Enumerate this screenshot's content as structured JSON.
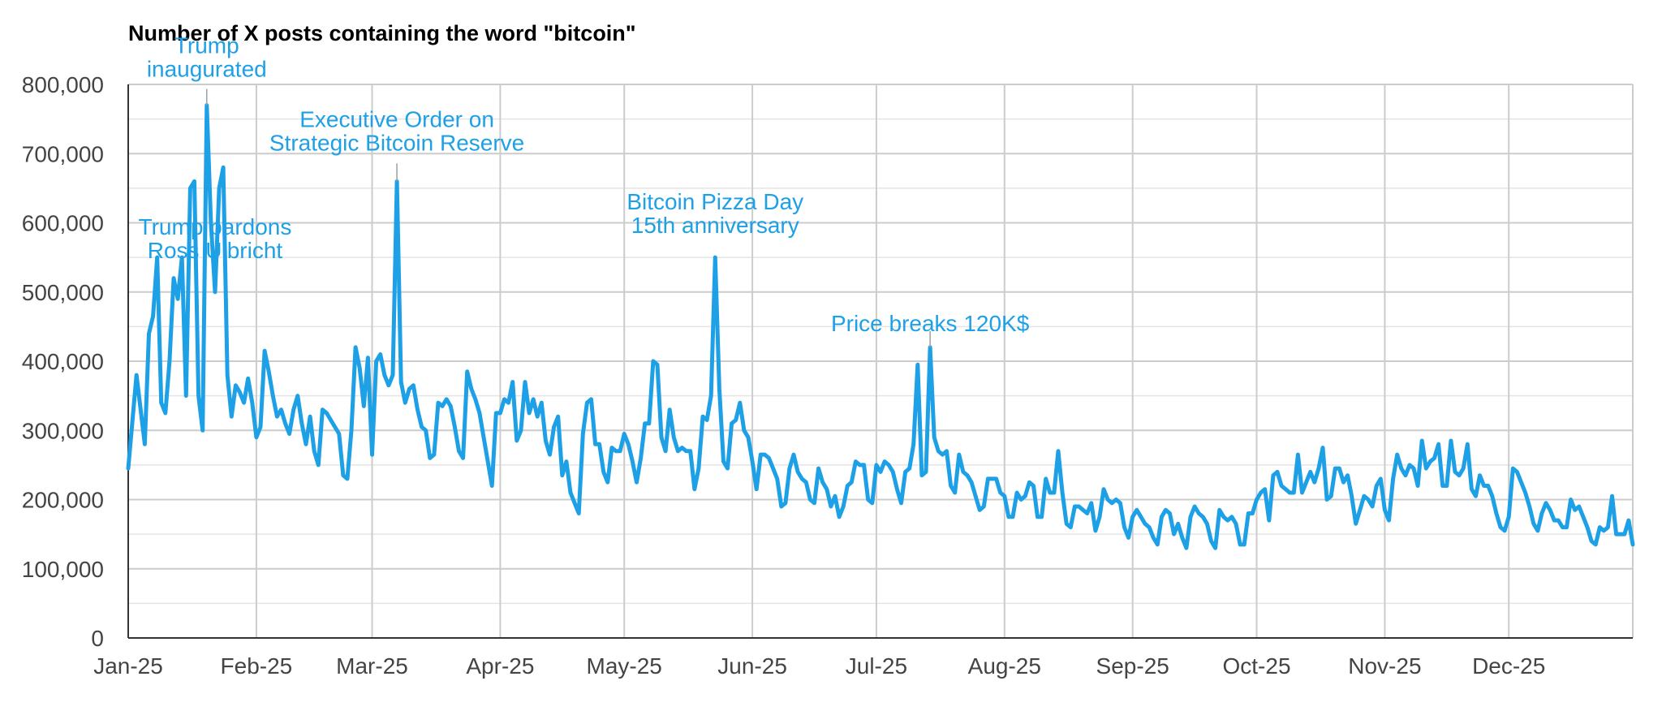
{
  "chart_data": {
    "type": "line",
    "title": "Number of X posts containing the word \"bitcoin\"",
    "xlabel": "",
    "ylabel": "",
    "ylim": [
      0,
      800000
    ],
    "yticks": [
      "800,000",
      "700,000",
      "600,000",
      "500,000",
      "400,000",
      "300,000",
      "200,000",
      "100,000",
      "0"
    ],
    "ytick_values": [
      800000,
      700000,
      600000,
      500000,
      400000,
      300000,
      200000,
      100000,
      0
    ],
    "xticks": [
      "Jan-25",
      "Feb-25",
      "Mar-25",
      "Apr-25",
      "May-25",
      "Jun-25",
      "Jul-25",
      "Aug-25",
      "Sep-25",
      "Oct-25",
      "Nov-25",
      "Dec-25"
    ],
    "xtick_days": [
      0,
      31,
      59,
      90,
      120,
      151,
      181,
      212,
      243,
      273,
      304,
      334
    ],
    "x_domain_days": [
      0,
      364
    ],
    "grid": true,
    "line_color": "#1ea0e6",
    "points": [
      [
        0,
        245000
      ],
      [
        2,
        380000
      ],
      [
        4,
        280000
      ],
      [
        5,
        440000
      ],
      [
        6,
        465000
      ],
      [
        7,
        550000
      ],
      [
        8,
        340000
      ],
      [
        9,
        325000
      ],
      [
        10,
        400000
      ],
      [
        11,
        520000
      ],
      [
        12,
        490000
      ],
      [
        13,
        550000
      ],
      [
        14,
        350000
      ],
      [
        15,
        650000
      ],
      [
        16,
        660000
      ],
      [
        17,
        350000
      ],
      [
        18,
        300000
      ],
      [
        19,
        770000
      ],
      [
        20,
        600000
      ],
      [
        21,
        500000
      ],
      [
        22,
        650000
      ],
      [
        23,
        680000
      ],
      [
        24,
        380000
      ],
      [
        25,
        320000
      ],
      [
        26,
        365000
      ],
      [
        27,
        355000
      ],
      [
        28,
        340000
      ],
      [
        29,
        375000
      ],
      [
        30,
        340000
      ],
      [
        31,
        290000
      ],
      [
        32,
        305000
      ],
      [
        33,
        415000
      ],
      [
        34,
        385000
      ],
      [
        35,
        350000
      ],
      [
        36,
        320000
      ],
      [
        37,
        330000
      ],
      [
        38,
        310000
      ],
      [
        39,
        295000
      ],
      [
        40,
        330000
      ],
      [
        41,
        350000
      ],
      [
        42,
        310000
      ],
      [
        43,
        280000
      ],
      [
        44,
        320000
      ],
      [
        45,
        270000
      ],
      [
        46,
        250000
      ],
      [
        47,
        330000
      ],
      [
        48,
        325000
      ],
      [
        49,
        315000
      ],
      [
        50,
        305000
      ],
      [
        51,
        295000
      ],
      [
        52,
        235000
      ],
      [
        53,
        230000
      ],
      [
        54,
        300000
      ],
      [
        55,
        420000
      ],
      [
        56,
        390000
      ],
      [
        57,
        335000
      ],
      [
        58,
        405000
      ],
      [
        59,
        265000
      ],
      [
        60,
        400000
      ],
      [
        61,
        410000
      ],
      [
        62,
        380000
      ],
      [
        63,
        365000
      ],
      [
        64,
        380000
      ],
      [
        65,
        660000
      ],
      [
        66,
        370000
      ],
      [
        67,
        340000
      ],
      [
        68,
        360000
      ],
      [
        69,
        365000
      ],
      [
        70,
        330000
      ],
      [
        71,
        305000
      ],
      [
        72,
        300000
      ],
      [
        73,
        260000
      ],
      [
        74,
        265000
      ],
      [
        75,
        340000
      ],
      [
        76,
        335000
      ],
      [
        77,
        345000
      ],
      [
        78,
        335000
      ],
      [
        79,
        305000
      ],
      [
        80,
        270000
      ],
      [
        81,
        260000
      ],
      [
        82,
        385000
      ],
      [
        83,
        360000
      ],
      [
        84,
        345000
      ],
      [
        85,
        325000
      ],
      [
        86,
        290000
      ],
      [
        87,
        255000
      ],
      [
        88,
        220000
      ],
      [
        89,
        325000
      ],
      [
        90,
        325000
      ],
      [
        91,
        345000
      ],
      [
        92,
        340000
      ],
      [
        93,
        370000
      ],
      [
        94,
        285000
      ],
      [
        95,
        300000
      ],
      [
        96,
        370000
      ],
      [
        97,
        325000
      ],
      [
        98,
        345000
      ],
      [
        99,
        320000
      ],
      [
        100,
        340000
      ],
      [
        101,
        285000
      ],
      [
        102,
        265000
      ],
      [
        103,
        305000
      ],
      [
        104,
        320000
      ],
      [
        105,
        235000
      ],
      [
        106,
        255000
      ],
      [
        107,
        210000
      ],
      [
        108,
        195000
      ],
      [
        109,
        180000
      ],
      [
        110,
        295000
      ],
      [
        111,
        340000
      ],
      [
        112,
        345000
      ],
      [
        113,
        280000
      ],
      [
        114,
        280000
      ],
      [
        115,
        240000
      ],
      [
        116,
        225000
      ],
      [
        117,
        275000
      ],
      [
        118,
        270000
      ],
      [
        119,
        270000
      ],
      [
        120,
        295000
      ],
      [
        121,
        280000
      ],
      [
        122,
        255000
      ],
      [
        123,
        225000
      ],
      [
        124,
        260000
      ],
      [
        125,
        310000
      ],
      [
        126,
        310000
      ],
      [
        127,
        400000
      ],
      [
        128,
        395000
      ],
      [
        129,
        290000
      ],
      [
        130,
        270000
      ],
      [
        131,
        330000
      ],
      [
        132,
        290000
      ],
      [
        133,
        270000
      ],
      [
        134,
        275000
      ],
      [
        135,
        270000
      ],
      [
        136,
        270000
      ],
      [
        137,
        215000
      ],
      [
        138,
        245000
      ],
      [
        139,
        320000
      ],
      [
        140,
        315000
      ],
      [
        141,
        350000
      ],
      [
        142,
        550000
      ],
      [
        143,
        360000
      ],
      [
        144,
        255000
      ],
      [
        145,
        245000
      ],
      [
        146,
        310000
      ],
      [
        147,
        315000
      ],
      [
        148,
        340000
      ],
      [
        149,
        300000
      ],
      [
        150,
        290000
      ],
      [
        151,
        255000
      ],
      [
        152,
        215000
      ],
      [
        153,
        265000
      ],
      [
        154,
        265000
      ],
      [
        155,
        260000
      ],
      [
        156,
        245000
      ],
      [
        157,
        230000
      ],
      [
        158,
        190000
      ],
      [
        159,
        195000
      ],
      [
        160,
        245000
      ],
      [
        161,
        265000
      ],
      [
        162,
        240000
      ],
      [
        163,
        230000
      ],
      [
        164,
        225000
      ],
      [
        165,
        200000
      ],
      [
        166,
        195000
      ],
      [
        167,
        245000
      ],
      [
        168,
        225000
      ],
      [
        169,
        215000
      ],
      [
        170,
        190000
      ],
      [
        171,
        205000
      ],
      [
        172,
        175000
      ],
      [
        173,
        190000
      ],
      [
        174,
        220000
      ],
      [
        175,
        225000
      ],
      [
        176,
        255000
      ],
      [
        177,
        250000
      ],
      [
        178,
        250000
      ],
      [
        179,
        200000
      ],
      [
        180,
        195000
      ],
      [
        181,
        250000
      ],
      [
        182,
        240000
      ],
      [
        183,
        255000
      ],
      [
        184,
        250000
      ],
      [
        185,
        240000
      ],
      [
        186,
        215000
      ],
      [
        187,
        195000
      ],
      [
        188,
        240000
      ],
      [
        189,
        245000
      ],
      [
        190,
        280000
      ],
      [
        191,
        395000
      ],
      [
        192,
        235000
      ],
      [
        193,
        240000
      ],
      [
        194,
        420000
      ],
      [
        195,
        290000
      ],
      [
        196,
        270000
      ],
      [
        197,
        265000
      ],
      [
        198,
        270000
      ],
      [
        199,
        220000
      ],
      [
        200,
        210000
      ],
      [
        201,
        265000
      ],
      [
        202,
        240000
      ],
      [
        203,
        235000
      ],
      [
        204,
        225000
      ],
      [
        205,
        205000
      ],
      [
        206,
        185000
      ],
      [
        207,
        190000
      ],
      [
        208,
        230000
      ],
      [
        209,
        230000
      ],
      [
        210,
        230000
      ],
      [
        211,
        210000
      ],
      [
        212,
        205000
      ],
      [
        213,
        175000
      ],
      [
        214,
        175000
      ],
      [
        215,
        210000
      ],
      [
        216,
        200000
      ],
      [
        217,
        205000
      ],
      [
        218,
        225000
      ],
      [
        219,
        220000
      ],
      [
        220,
        175000
      ],
      [
        221,
        175000
      ],
      [
        222,
        230000
      ],
      [
        223,
        210000
      ],
      [
        224,
        210000
      ],
      [
        225,
        270000
      ],
      [
        226,
        210000
      ],
      [
        227,
        165000
      ],
      [
        228,
        160000
      ],
      [
        229,
        190000
      ],
      [
        230,
        190000
      ],
      [
        231,
        185000
      ],
      [
        232,
        180000
      ],
      [
        233,
        195000
      ],
      [
        234,
        155000
      ],
      [
        235,
        175000
      ],
      [
        236,
        215000
      ],
      [
        237,
        200000
      ],
      [
        238,
        195000
      ],
      [
        239,
        200000
      ],
      [
        240,
        195000
      ],
      [
        241,
        160000
      ],
      [
        242,
        145000
      ],
      [
        243,
        175000
      ],
      [
        244,
        185000
      ],
      [
        245,
        175000
      ],
      [
        246,
        165000
      ],
      [
        247,
        160000
      ],
      [
        248,
        145000
      ],
      [
        249,
        135000
      ],
      [
        250,
        175000
      ],
      [
        251,
        185000
      ],
      [
        252,
        180000
      ],
      [
        253,
        150000
      ],
      [
        254,
        165000
      ],
      [
        255,
        145000
      ],
      [
        256,
        130000
      ],
      [
        257,
        175000
      ],
      [
        258,
        190000
      ],
      [
        259,
        180000
      ],
      [
        260,
        175000
      ],
      [
        261,
        165000
      ],
      [
        262,
        140000
      ],
      [
        263,
        130000
      ],
      [
        264,
        185000
      ],
      [
        265,
        175000
      ],
      [
        266,
        170000
      ],
      [
        267,
        175000
      ],
      [
        268,
        165000
      ],
      [
        269,
        135000
      ],
      [
        270,
        135000
      ],
      [
        271,
        180000
      ],
      [
        272,
        180000
      ],
      [
        273,
        200000
      ],
      [
        274,
        210000
      ],
      [
        275,
        215000
      ],
      [
        276,
        170000
      ],
      [
        277,
        235000
      ],
      [
        278,
        240000
      ],
      [
        279,
        220000
      ],
      [
        280,
        215000
      ],
      [
        281,
        210000
      ],
      [
        282,
        210000
      ],
      [
        283,
        265000
      ],
      [
        284,
        210000
      ],
      [
        285,
        225000
      ],
      [
        286,
        240000
      ],
      [
        287,
        225000
      ],
      [
        288,
        245000
      ],
      [
        289,
        275000
      ],
      [
        290,
        200000
      ],
      [
        291,
        205000
      ],
      [
        292,
        245000
      ],
      [
        293,
        245000
      ],
      [
        294,
        225000
      ],
      [
        295,
        235000
      ],
      [
        296,
        205000
      ],
      [
        297,
        165000
      ],
      [
        298,
        185000
      ],
      [
        299,
        205000
      ],
      [
        300,
        200000
      ],
      [
        301,
        190000
      ],
      [
        302,
        220000
      ],
      [
        303,
        230000
      ],
      [
        304,
        185000
      ],
      [
        305,
        170000
      ],
      [
        306,
        230000
      ],
      [
        307,
        265000
      ],
      [
        308,
        245000
      ],
      [
        309,
        235000
      ],
      [
        310,
        250000
      ],
      [
        311,
        245000
      ],
      [
        312,
        220000
      ],
      [
        313,
        285000
      ],
      [
        314,
        245000
      ],
      [
        315,
        255000
      ],
      [
        316,
        260000
      ],
      [
        317,
        280000
      ],
      [
        318,
        220000
      ],
      [
        319,
        220000
      ],
      [
        320,
        285000
      ],
      [
        321,
        240000
      ],
      [
        322,
        235000
      ],
      [
        323,
        245000
      ],
      [
        324,
        280000
      ],
      [
        325,
        215000
      ],
      [
        326,
        205000
      ],
      [
        327,
        235000
      ],
      [
        328,
        220000
      ],
      [
        329,
        220000
      ],
      [
        330,
        205000
      ],
      [
        331,
        180000
      ],
      [
        332,
        160000
      ],
      [
        333,
        155000
      ],
      [
        334,
        175000
      ],
      [
        335,
        245000
      ],
      [
        336,
        240000
      ],
      [
        337,
        225000
      ],
      [
        338,
        210000
      ],
      [
        339,
        190000
      ],
      [
        340,
        165000
      ],
      [
        341,
        155000
      ],
      [
        342,
        180000
      ],
      [
        343,
        195000
      ],
      [
        344,
        185000
      ],
      [
        345,
        170000
      ],
      [
        346,
        170000
      ],
      [
        347,
        160000
      ],
      [
        348,
        160000
      ],
      [
        349,
        200000
      ],
      [
        350,
        185000
      ],
      [
        351,
        190000
      ],
      [
        352,
        175000
      ],
      [
        353,
        160000
      ],
      [
        354,
        140000
      ],
      [
        355,
        135000
      ],
      [
        356,
        160000
      ],
      [
        357,
        155000
      ],
      [
        358,
        160000
      ],
      [
        359,
        205000
      ],
      [
        360,
        150000
      ],
      [
        361,
        150000
      ],
      [
        362,
        150000
      ],
      [
        363,
        170000
      ],
      [
        364,
        135000
      ]
    ],
    "annotations": [
      {
        "lines": [
          "Trump",
          "inaugurated"
        ],
        "day": 19,
        "value": 770000
      },
      {
        "lines": [
          "Executive Order on",
          "Strategic Bitcoin Reserve"
        ],
        "day": 65,
        "value": 660000
      },
      {
        "lines": [
          "Trump pardons",
          "Ross Ulbricht"
        ],
        "day": 21,
        "value": 500000
      },
      {
        "lines": [
          "Bitcoin Pizza Day",
          "15th anniversary"
        ],
        "day": 142,
        "value": 550000
      },
      {
        "lines": [
          "Price breaks 120K$"
        ],
        "day": 194,
        "value": 420000
      }
    ]
  }
}
